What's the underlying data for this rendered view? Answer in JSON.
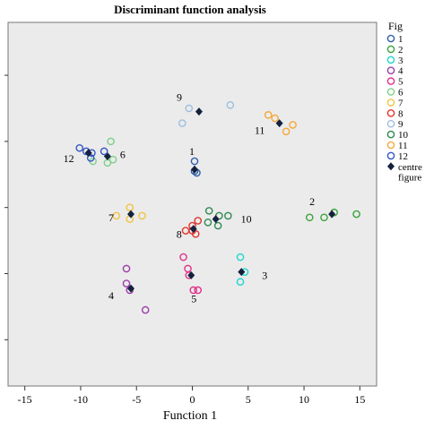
{
  "chart_data": {
    "type": "scatter",
    "title": "Discriminant function analysis",
    "xlabel": "Function 1",
    "ylabel": "",
    "xlim": [
      -16.5,
      16.5
    ],
    "ylim": [
      -4.4,
      6.6
    ],
    "xticks": [
      -15,
      -10,
      -5,
      0,
      5,
      10,
      15
    ],
    "legend_title": "Fig",
    "legend_position": "right",
    "plot_background": "#ebebeb",
    "series": [
      {
        "name": "1",
        "color": "#2e5fa8",
        "label": "1",
        "x": [
          0.2,
          0.2,
          0.4
        ],
        "y": [
          2.4,
          2.1,
          2.05
        ],
        "centroid": [
          0.2,
          2.15
        ]
      },
      {
        "name": "2",
        "color": "#3aa33a",
        "label": "2",
        "x": [
          10.5,
          11.8,
          12.7,
          14.7
        ],
        "y": [
          0.7,
          0.7,
          0.85,
          0.8
        ],
        "centroid": [
          12.5,
          0.8
        ]
      },
      {
        "name": "3",
        "color": "#1fd6cf",
        "label": "3",
        "x": [
          4.3,
          4.7,
          4.3
        ],
        "y": [
          -0.5,
          -0.95,
          -1.25
        ],
        "centroid": [
          4.4,
          -0.95
        ]
      },
      {
        "name": "4",
        "color": "#9c3fa8",
        "label": "4",
        "x": [
          -5.9,
          -5.9,
          -5.6,
          -4.2
        ],
        "y": [
          -0.85,
          -1.3,
          -1.5,
          -2.1
        ],
        "centroid": [
          -5.5,
          -1.45
        ]
      },
      {
        "name": "5",
        "color": "#e0338c",
        "label": "5",
        "x": [
          -0.8,
          -0.4,
          -0.3,
          0.1,
          0.5
        ],
        "y": [
          -0.5,
          -0.85,
          -1.05,
          -1.5,
          -1.5
        ],
        "centroid": [
          -0.1,
          -1.05
        ]
      },
      {
        "name": "6",
        "color": "#7fcf8a",
        "label": "6",
        "x": [
          -7.3,
          -8.9,
          -7.6,
          -7.1
        ],
        "y": [
          3.0,
          2.4,
          2.35,
          2.45
        ],
        "centroid": [
          -7.6,
          2.55
        ]
      },
      {
        "name": "7",
        "color": "#f2c443",
        "label": "7",
        "x": [
          -5.6,
          -4.5,
          -6.8,
          -5.6
        ],
        "y": [
          1.0,
          0.75,
          0.75,
          0.65
        ],
        "centroid": [
          -5.5,
          0.8
        ]
      },
      {
        "name": "8",
        "color": "#e2352c",
        "label": "8",
        "x": [
          -0.6,
          0.0,
          0.3,
          0.5,
          0.0
        ],
        "y": [
          0.3,
          0.3,
          0.2,
          0.6,
          0.45
        ],
        "centroid": [
          0.1,
          0.35
        ]
      },
      {
        "name": "9",
        "color": "#9fbfe0",
        "label": "9",
        "x": [
          -0.3,
          3.4,
          -0.9
        ],
        "y": [
          4.0,
          4.1,
          3.55
        ],
        "centroid": [
          0.6,
          3.9
        ]
      },
      {
        "name": "10",
        "color": "#2f8a52",
        "label": "10",
        "x": [
          1.5,
          2.4,
          1.4,
          3.2,
          2.3
        ],
        "y": [
          0.9,
          0.75,
          0.55,
          0.75,
          0.45
        ],
        "centroid": [
          2.1,
          0.65
        ]
      },
      {
        "name": "11",
        "color": "#f5a83a",
        "label": "11",
        "x": [
          6.8,
          7.4,
          9.0,
          8.4
        ],
        "y": [
          3.8,
          3.7,
          3.5,
          3.3
        ],
        "centroid": [
          7.8,
          3.55
        ]
      },
      {
        "name": "12",
        "color": "#3656c4",
        "label": "12",
        "x": [
          -10.1,
          -9.5,
          -9.0,
          -9.1,
          -7.9
        ],
        "y": [
          2.8,
          2.7,
          2.65,
          2.5,
          2.7
        ],
        "centroid": [
          -9.3,
          2.65
        ]
      }
    ],
    "centroid_series": {
      "name": "centre",
      "marker": "diamond",
      "color": "#14213d"
    },
    "legend_entries": [
      "1",
      "2",
      "3",
      "4",
      "5",
      "6",
      "7",
      "8",
      "9",
      "10",
      "11",
      "12",
      "centre",
      "figure"
    ]
  }
}
